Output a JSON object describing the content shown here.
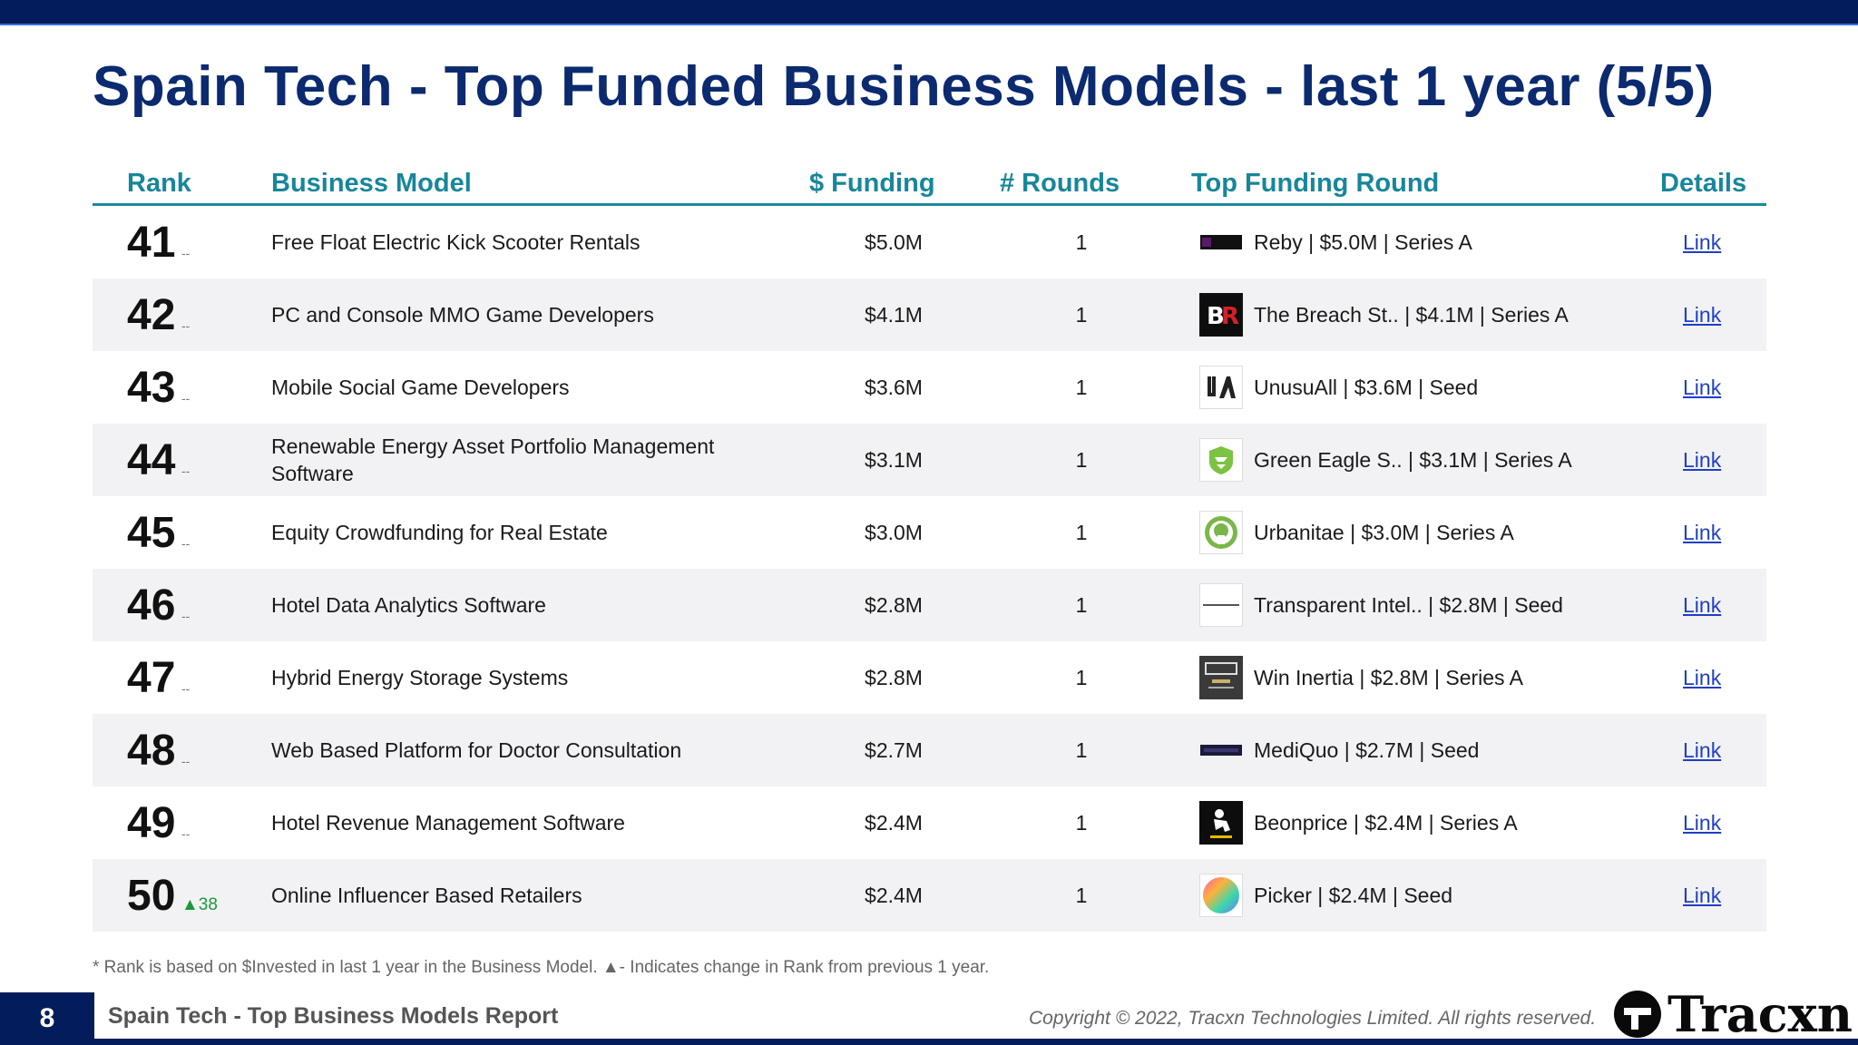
{
  "title": "Spain Tech - Top Funded Business Models - last 1 year (5/5)",
  "columns": {
    "rank": "Rank",
    "business_model": "Business Model",
    "funding": "$ Funding",
    "rounds": "# Rounds",
    "top_round": "Top Funding Round",
    "details": "Details"
  },
  "rows": [
    {
      "rank": "41",
      "change": "--",
      "model": "Free Float Electric Kick Scooter Rentals",
      "funding": "$5.0M",
      "rounds": "1",
      "top_round": "Reby | $5.0M | Series A",
      "link": "Link",
      "logo": "reby-logo"
    },
    {
      "rank": "42",
      "change": "--",
      "model": "PC and Console MMO Game Developers",
      "funding": "$4.1M",
      "rounds": "1",
      "top_round": "The Breach St.. | $4.1M | Series A",
      "link": "Link",
      "logo": "br-logo"
    },
    {
      "rank": "43",
      "change": "--",
      "model": "Mobile Social Game Developers",
      "funding": "$3.6M",
      "rounds": "1",
      "top_round": "UnusuAll | $3.6M | Seed",
      "link": "Link",
      "logo": "ua-logo"
    },
    {
      "rank": "44",
      "change": "--",
      "model": "Renewable Energy Asset Portfolio Management Software",
      "funding": "$3.1M",
      "rounds": "1",
      "top_round": "Green Eagle S.. | $3.1M | Series A",
      "link": "Link",
      "logo": "green-eagle-logo"
    },
    {
      "rank": "45",
      "change": "--",
      "model": "Equity Crowdfunding for Real Estate",
      "funding": "$3.0M",
      "rounds": "1",
      "top_round": "Urbanitae | $3.0M | Series A",
      "link": "Link",
      "logo": "urbanitae-logo"
    },
    {
      "rank": "46",
      "change": "--",
      "model": "Hotel Data Analytics Software",
      "funding": "$2.8M",
      "rounds": "1",
      "top_round": "Transparent Intel.. | $2.8M | Seed",
      "link": "Link",
      "logo": "transparent-logo"
    },
    {
      "rank": "47",
      "change": "--",
      "model": "Hybrid Energy Storage Systems",
      "funding": "$2.8M",
      "rounds": "1",
      "top_round": "Win Inertia | $2.8M | Series A",
      "link": "Link",
      "logo": "hess-logo"
    },
    {
      "rank": "48",
      "change": "--",
      "model": "Web Based Platform for Doctor Consultation",
      "funding": "$2.7M",
      "rounds": "1",
      "top_round": "MediQuo | $2.7M | Seed",
      "link": "Link",
      "logo": "mediquo-logo"
    },
    {
      "rank": "49",
      "change": "--",
      "model": "Hotel Revenue Management Software",
      "funding": "$2.4M",
      "rounds": "1",
      "top_round": "Beonprice | $2.4M | Series A",
      "link": "Link",
      "logo": "beonprice-logo"
    },
    {
      "rank": "50",
      "change": "▲38",
      "model": "Online Influencer Based Retailers",
      "funding": "$2.4M",
      "rounds": "1",
      "top_round": "Picker | $2.4M | Seed",
      "link": "Link",
      "logo": "picker-logo"
    }
  ],
  "footnote": "*  Rank is based on $Invested in last 1 year in the Business Model.  ▲- Indicates change in Rank from previous 1 year.",
  "footer": {
    "page_number": "8",
    "report_title": "Spain Tech - Top Business Models Report",
    "copyright": "Copyright © 2022, Tracxn Technologies Limited. All rights reserved.",
    "brand": "Tracxn"
  },
  "colors": {
    "navy": "#031d5c",
    "title": "#0b2a6f",
    "header_teal": "#17869b",
    "link_blue": "#1f3fc4",
    "rank_up_green": "#1a9a3a"
  }
}
